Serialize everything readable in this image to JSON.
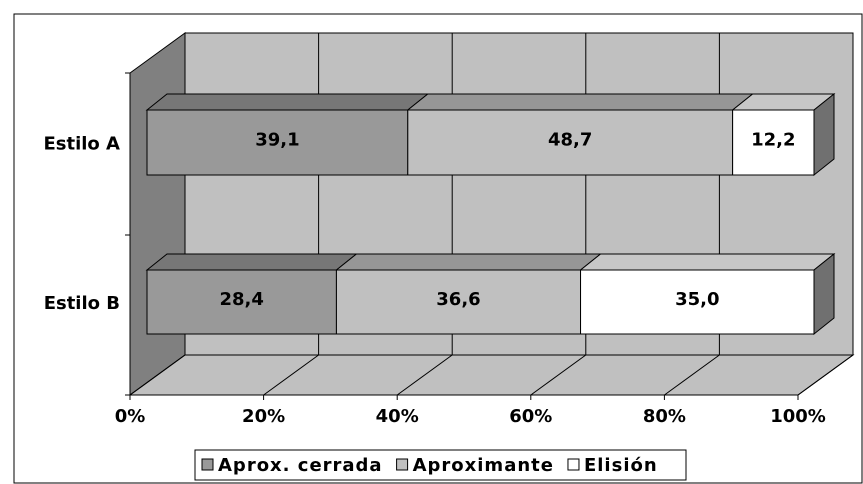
{
  "chart_data": {
    "type": "stacked-bar-3d",
    "categories": [
      "Estilo A",
      "Estilo B"
    ],
    "series": [
      {
        "name": "Aprox. cerrada",
        "color": "#999999",
        "values": [
          39.1,
          28.4
        ],
        "value_labels": [
          "39,1",
          "28,4"
        ]
      },
      {
        "name": "Aproximante",
        "color": "#c0c0c0",
        "values": [
          48.7,
          36.6
        ],
        "value_labels": [
          "48,7",
          "36,6"
        ]
      },
      {
        "name": "Elisión",
        "color": "#ffffff",
        "values": [
          12.2,
          35.0
        ],
        "value_labels": [
          "12,2",
          "35,0"
        ]
      }
    ],
    "xlim": [
      0,
      100
    ],
    "xticks": [
      {
        "value": 0,
        "label": "0%"
      },
      {
        "value": 20,
        "label": "20%"
      },
      {
        "value": 40,
        "label": "40%"
      },
      {
        "value": 60,
        "label": "60%"
      },
      {
        "value": 80,
        "label": "80%"
      },
      {
        "value": 100,
        "label": "100%"
      }
    ],
    "grid": true,
    "legend": "bottom"
  }
}
